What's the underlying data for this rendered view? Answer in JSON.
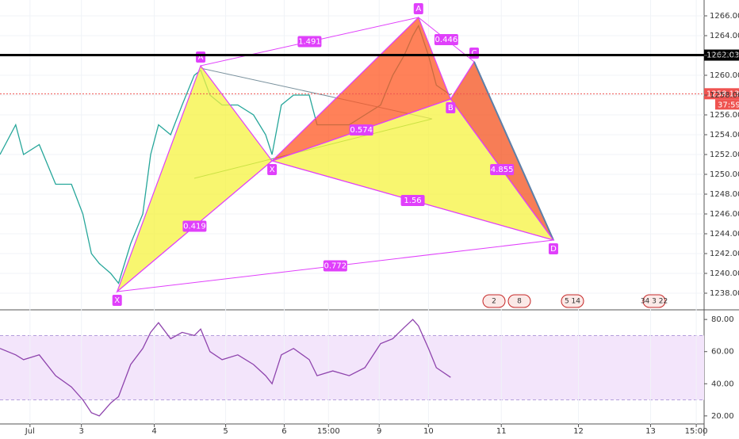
{
  "chart_data": [
    {
      "type": "line",
      "x": [
        -0.42,
        -0.2,
        -0.09,
        0.13,
        0.36,
        0.58,
        0.74,
        0.86,
        0.97,
        1.13,
        1.24,
        1.41,
        1.58,
        1.69,
        1.8,
        1.97,
        2.13,
        2.3,
        2.39,
        2.52,
        2.69,
        2.91,
        3.13,
        3.3,
        3.39,
        3.52,
        3.69,
        3.91,
        4.02,
        4.24,
        4.47,
        4.69,
        4.91,
        5.08,
        5.24,
        5.36,
        5.44,
        5.58,
        5.69,
        5.89
      ],
      "values": [
        1252,
        1255,
        1252,
        1253,
        1249,
        1249,
        1246,
        1242,
        1241,
        1240,
        1239,
        1243,
        1246,
        1252,
        1255,
        1254,
        1257,
        1260,
        1260.5,
        1258,
        1257,
        1257,
        1256,
        1254,
        1252,
        1257,
        1258,
        1258,
        1255,
        1255,
        1255,
        1256,
        1257,
        1260,
        1262,
        1264,
        1265,
        1262,
        1259,
        1258
      ],
      "color": "#26a69a",
      "xlim": [
        -0.42,
        9.44
      ],
      "ylim": [
        1236.4,
        1267.6
      ],
      "yticks": [
        {
          "value": 1238,
          "label": "1238.000"
        },
        {
          "value": 1240,
          "label": "1240.000"
        },
        {
          "value": 1242,
          "label": "1242.000"
        },
        {
          "value": 1244,
          "label": "1244.000"
        },
        {
          "value": 1246,
          "label": "1246.000"
        },
        {
          "value": 1248,
          "label": "1248.000"
        },
        {
          "value": 1250,
          "label": "1250.000"
        },
        {
          "value": 1252,
          "label": "1252.000"
        },
        {
          "value": 1254,
          "label": "1254.000"
        },
        {
          "value": 1256,
          "label": "1256.000"
        },
        {
          "value": 1258,
          "label": "1258.000"
        },
        {
          "value": 1260,
          "label": "1260.000"
        },
        {
          "value": 1262,
          "label": "1262.000"
        },
        {
          "value": 1264,
          "label": "1264.000"
        },
        {
          "value": 1266,
          "label": "1266.000"
        }
      ],
      "price_lines": [
        {
          "value": 1262.037,
          "color": "#000000"
        },
        {
          "value": 1258.135,
          "color": "#ef5350",
          "countdown": "37:59"
        }
      ],
      "pattern_points": [
        {
          "label": "X",
          "x": 1.22,
          "y": 1238.16
        },
        {
          "label": "A",
          "x": 2.39,
          "y": 1260.96
        },
        {
          "label": "X",
          "x": 3.39,
          "y": 1251.36
        },
        {
          "label": "A",
          "x": 5.44,
          "y": 1265.84
        },
        {
          "label": "B",
          "x": 5.89,
          "y": 1257.6
        },
        {
          "label": "C",
          "x": 6.22,
          "y": 1261.36
        },
        {
          "label": "D",
          "x": 7.33,
          "y": 1243.36
        }
      ],
      "ratios": [
        1.491,
        0.446,
        0.574,
        4.855,
        1.56,
        0.419,
        0.772
      ],
      "events": [
        "2",
        "8",
        "5 14",
        "34 3 22"
      ]
    },
    {
      "type": "line",
      "x": [
        -0.42,
        -0.2,
        -0.09,
        0.13,
        0.36,
        0.58,
        0.74,
        0.86,
        0.97,
        1.13,
        1.24,
        1.41,
        1.58,
        1.69,
        1.8,
        1.97,
        2.13,
        2.3,
        2.39,
        2.52,
        2.69,
        2.91,
        3.13,
        3.3,
        3.39,
        3.52,
        3.69,
        3.91,
        4.02,
        4.24,
        4.47,
        4.69,
        4.91,
        5.08,
        5.24,
        5.36,
        5.44,
        5.58,
        5.69,
        5.89
      ],
      "values": [
        62,
        58,
        55,
        58,
        45,
        38,
        30,
        22,
        20,
        28,
        32,
        52,
        62,
        72,
        78,
        68,
        72,
        70,
        74,
        60,
        55,
        58,
        52,
        45,
        40,
        58,
        62,
        55,
        45,
        48,
        45,
        50,
        65,
        68,
        75,
        80,
        76,
        62,
        50,
        44
      ],
      "color": "#8e44ad",
      "xlim": [
        -0.42,
        9.44
      ],
      "ylim": [
        15,
        85.5
      ],
      "yticks": [
        {
          "value": 20,
          "label": "20.00"
        },
        {
          "value": 40,
          "label": "40.00"
        },
        {
          "value": 60,
          "label": "60.00"
        },
        {
          "value": 80,
          "label": "80.00"
        }
      ],
      "band": [
        30,
        70
      ],
      "xticks": [
        {
          "value": 0,
          "label": "Jul"
        },
        {
          "value": 0.72,
          "label": "3"
        },
        {
          "value": 1.74,
          "label": "4"
        },
        {
          "value": 2.74,
          "label": "5"
        },
        {
          "value": 3.56,
          "label": "6"
        },
        {
          "value": 4.18,
          "label": "15:00"
        },
        {
          "value": 4.89,
          "label": "9"
        },
        {
          "value": 5.58,
          "label": "10"
        },
        {
          "value": 6.6,
          "label": "11"
        },
        {
          "value": 7.68,
          "label": "12"
        },
        {
          "value": 8.69,
          "label": "13"
        },
        {
          "value": 9.33,
          "label": "15:00"
        }
      ]
    }
  ]
}
